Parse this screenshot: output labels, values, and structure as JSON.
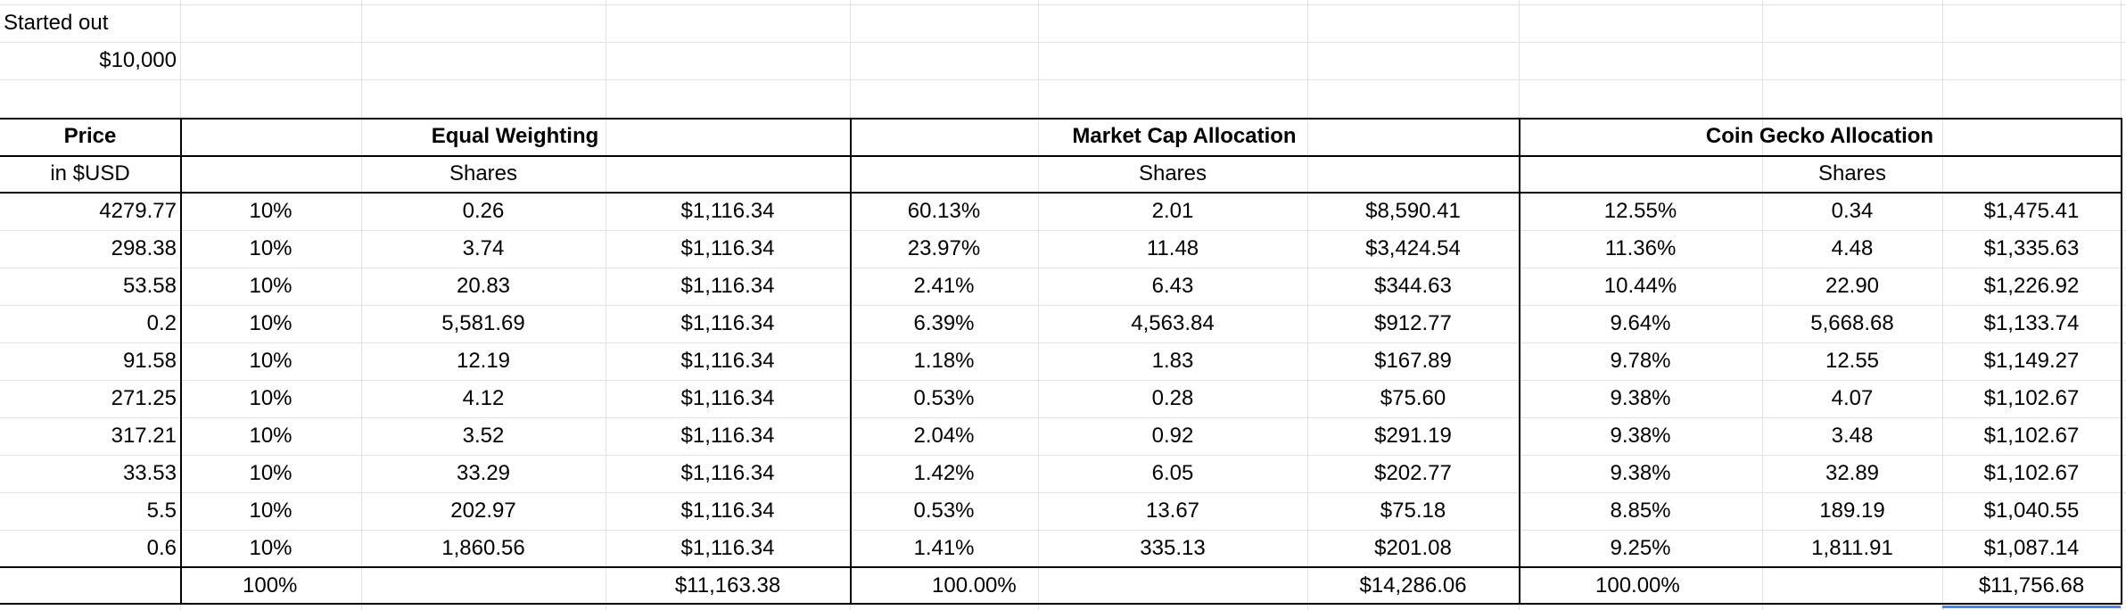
{
  "started": {
    "label": "Started out",
    "value": "$10,000"
  },
  "headers": {
    "price": "Price",
    "price_sub": "in $USD",
    "groups": [
      "Equal Weighting",
      "Market Cap Allocation",
      "Coin Gecko Allocation"
    ],
    "shares": "Shares"
  },
  "rows": [
    [
      "4279.77",
      "10%",
      "0.26",
      "$1,116.34",
      "60.13%",
      "2.01",
      "$8,590.41",
      "12.55%",
      "0.34",
      "$1,475.41"
    ],
    [
      "298.38",
      "10%",
      "3.74",
      "$1,116.34",
      "23.97%",
      "11.48",
      "$3,424.54",
      "11.36%",
      "4.48",
      "$1,335.63"
    ],
    [
      "53.58",
      "10%",
      "20.83",
      "$1,116.34",
      "2.41%",
      "6.43",
      "$344.63",
      "10.44%",
      "22.90",
      "$1,226.92"
    ],
    [
      "0.2",
      "10%",
      "5,581.69",
      "$1,116.34",
      "6.39%",
      "4,563.84",
      "$912.77",
      "9.64%",
      "5,668.68",
      "$1,133.74"
    ],
    [
      "91.58",
      "10%",
      "12.19",
      "$1,116.34",
      "1.18%",
      "1.83",
      "$167.89",
      "9.78%",
      "12.55",
      "$1,149.27"
    ],
    [
      "271.25",
      "10%",
      "4.12",
      "$1,116.34",
      "0.53%",
      "0.28",
      "$75.60",
      "9.38%",
      "4.07",
      "$1,102.67"
    ],
    [
      "317.21",
      "10%",
      "3.52",
      "$1,116.34",
      "2.04%",
      "0.92",
      "$291.19",
      "9.38%",
      "3.48",
      "$1,102.67"
    ],
    [
      "33.53",
      "10%",
      "33.29",
      "$1,116.34",
      "1.42%",
      "6.05",
      "$202.77",
      "9.38%",
      "32.89",
      "$1,102.67"
    ],
    [
      "5.5",
      "10%",
      "202.97",
      "$1,116.34",
      "0.53%",
      "13.67",
      "$75.18",
      "8.85%",
      "189.19",
      "$1,040.55"
    ],
    [
      "0.6",
      "10%",
      "1,860.56",
      "$1,116.34",
      "1.41%",
      "335.13",
      "$201.08",
      "9.25%",
      "1,811.91",
      "$1,087.14"
    ]
  ],
  "totals": [
    "",
    "100%",
    "",
    "$11,163.38",
    "100.00%",
    "",
    "$14,286.06",
    "100.00%",
    "",
    "$11,756.68"
  ]
}
